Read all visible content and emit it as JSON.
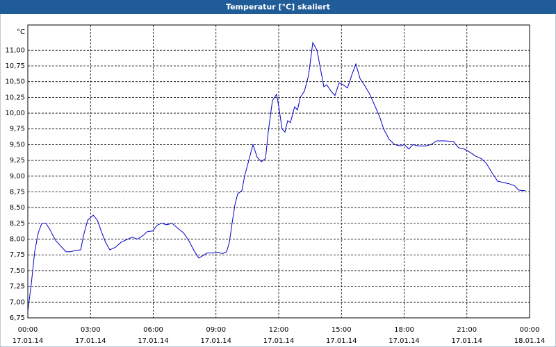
{
  "chart_data": {
    "type": "line",
    "title": "Temperatur [°C] skaliert",
    "y_label": "°C",
    "x": [
      0,
      0.17,
      0.33,
      0.5,
      0.67,
      0.87,
      1.06,
      1.33,
      1.6,
      1.83,
      2.06,
      2.26,
      2.53,
      2.66,
      2.86,
      3.13,
      3.33,
      3.52,
      3.72,
      3.92,
      4.19,
      4.46,
      4.72,
      4.99,
      5.25,
      5.52,
      5.72,
      5.98,
      6.18,
      6.38,
      6.65,
      6.91,
      7.18,
      7.45,
      7.71,
      7.98,
      8.18,
      8.38,
      8.58,
      8.84,
      9.11,
      9.31,
      9.51,
      9.64,
      9.77,
      9.91,
      10.04,
      10.24,
      10.37,
      10.57,
      10.77,
      10.97,
      11.17,
      11.37,
      11.5,
      11.7,
      11.9,
      12.03,
      12.16,
      12.3,
      12.43,
      12.56,
      12.76,
      12.9,
      13.03,
      13.23,
      13.43,
      13.63,
      13.83,
      14.03,
      14.16,
      14.3,
      14.5,
      14.69,
      14.89,
      15.09,
      15.29,
      15.49,
      15.69,
      15.89,
      16.09,
      16.36,
      16.62,
      16.82,
      17.02,
      17.29,
      17.55,
      17.82,
      18.02,
      18.22,
      18.42,
      18.68,
      19.02,
      19.28,
      19.55,
      19.95,
      20.35,
      20.61,
      20.88,
      21.14,
      21.41,
      21.68,
      21.94,
      22.21,
      22.47,
      22.74,
      23.01,
      23.27,
      23.47,
      23.67,
      23.8
    ],
    "series": [
      {
        "name": "Temperatur",
        "color": "#0000c8",
        "values": [
          6.85,
          7.3,
          7.8,
          8.1,
          8.25,
          8.25,
          8.15,
          7.98,
          7.88,
          7.8,
          7.8,
          7.82,
          7.83,
          8.05,
          8.3,
          8.38,
          8.3,
          8.12,
          7.95,
          7.83,
          7.87,
          7.95,
          7.99,
          8.03,
          8.0,
          8.06,
          8.12,
          8.13,
          8.22,
          8.25,
          8.23,
          8.25,
          8.17,
          8.1,
          7.97,
          7.8,
          7.7,
          7.74,
          7.78,
          7.78,
          7.79,
          7.77,
          7.8,
          7.95,
          8.25,
          8.55,
          8.72,
          8.77,
          9.0,
          9.25,
          9.5,
          9.3,
          9.23,
          9.28,
          9.7,
          10.2,
          10.3,
          10.05,
          9.75,
          9.7,
          9.88,
          9.85,
          10.1,
          10.05,
          10.25,
          10.35,
          10.6,
          11.12,
          11.0,
          10.65,
          10.42,
          10.45,
          10.35,
          10.28,
          10.48,
          10.45,
          10.4,
          10.6,
          10.78,
          10.55,
          10.45,
          10.3,
          10.1,
          9.95,
          9.75,
          9.58,
          9.5,
          9.48,
          9.5,
          9.43,
          9.5,
          9.48,
          9.48,
          9.5,
          9.56,
          9.56,
          9.55,
          9.45,
          9.43,
          9.38,
          9.32,
          9.28,
          9.2,
          9.05,
          8.92,
          8.9,
          8.88,
          8.85,
          8.78,
          8.77,
          8.77
        ]
      }
    ],
    "xlim": [
      0,
      24
    ],
    "xticks": [
      {
        "value": 0,
        "label": "00:00",
        "date": "17.01.14"
      },
      {
        "value": 3,
        "label": "03:00",
        "date": "17.01.14"
      },
      {
        "value": 6,
        "label": "06:00",
        "date": "17.01.14"
      },
      {
        "value": 9,
        "label": "09:00",
        "date": "17.01.14"
      },
      {
        "value": 12,
        "label": "12:00",
        "date": "17.01.14"
      },
      {
        "value": 15,
        "label": "15:00",
        "date": "17.01.14"
      },
      {
        "value": 18,
        "label": "18:00",
        "date": "17.01.14"
      },
      {
        "value": 21,
        "label": "21:00",
        "date": "17.01.14"
      },
      {
        "value": 24,
        "label": "00:00",
        "date": "18.01.14"
      }
    ],
    "ylim": [
      6.75,
      11.4
    ],
    "yticks": [
      {
        "value": 6.75,
        "label": "6,75"
      },
      {
        "value": 7,
        "label": "7,00"
      },
      {
        "value": 7.25,
        "label": "7,25"
      },
      {
        "value": 7.5,
        "label": "7,50"
      },
      {
        "value": 7.75,
        "label": "7,75"
      },
      {
        "value": 8,
        "label": "8,00"
      },
      {
        "value": 8.25,
        "label": "8,25"
      },
      {
        "value": 8.5,
        "label": "8,50"
      },
      {
        "value": 8.75,
        "label": "8,75"
      },
      {
        "value": 9,
        "label": "9,00"
      },
      {
        "value": 9.25,
        "label": "9,25"
      },
      {
        "value": 9.5,
        "label": "9,50"
      },
      {
        "value": 9.75,
        "label": "9,75"
      },
      {
        "value": 10,
        "label": "10,00"
      },
      {
        "value": 10.25,
        "label": "10,25"
      },
      {
        "value": 10.5,
        "label": "10,50"
      },
      {
        "value": 10.75,
        "label": "10,75"
      },
      {
        "value": 11,
        "label": "11,00"
      }
    ],
    "grid": true
  }
}
